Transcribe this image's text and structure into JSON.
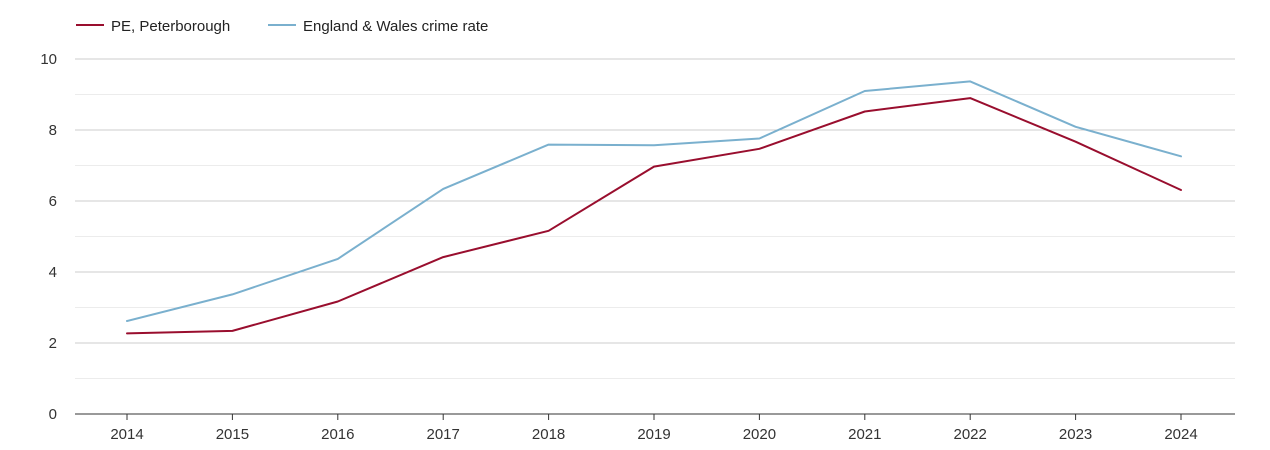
{
  "chart_data": {
    "type": "line",
    "title": "",
    "xlabel": "",
    "ylabel": "",
    "categories": [
      "2014",
      "2015",
      "2016",
      "2017",
      "2018",
      "2019",
      "2020",
      "2021",
      "2022",
      "2023",
      "2024"
    ],
    "ylim": [
      0,
      10
    ],
    "yticks": [
      "0",
      "2",
      "4",
      "6",
      "8",
      "10"
    ],
    "grid": true,
    "legend_position": "top-left",
    "series": [
      {
        "name": "PE, Peterborough",
        "color": "#990e2e",
        "values": [
          2.27,
          2.34,
          3.17,
          4.42,
          5.16,
          6.97,
          7.47,
          8.52,
          8.9,
          7.67,
          6.31
        ]
      },
      {
        "name": "England & Wales crime rate",
        "color": "#7ab0ce",
        "values": [
          2.62,
          3.37,
          4.37,
          6.34,
          7.59,
          7.57,
          7.76,
          9.1,
          9.37,
          8.09,
          7.26
        ]
      }
    ]
  }
}
